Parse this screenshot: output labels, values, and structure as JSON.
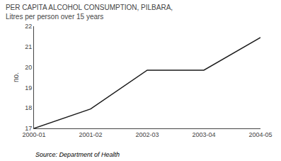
{
  "chart_data": {
    "type": "line",
    "title": "PER CAPITA ALCOHOL CONSUMPTION, PILBARA, Litres per person over 15 years",
    "ylabel": "no.",
    "source": "Source: Department of Health",
    "categories": [
      "2000-01",
      "2001-02",
      "2002-03",
      "2003-04",
      "2004-05"
    ],
    "values": [
      17.0,
      17.95,
      19.85,
      19.85,
      21.45
    ],
    "color": "#1a1a1a",
    "ylim": [
      17,
      22
    ],
    "yticks": [
      17,
      18,
      19,
      20,
      21,
      22
    ],
    "grid": false
  }
}
